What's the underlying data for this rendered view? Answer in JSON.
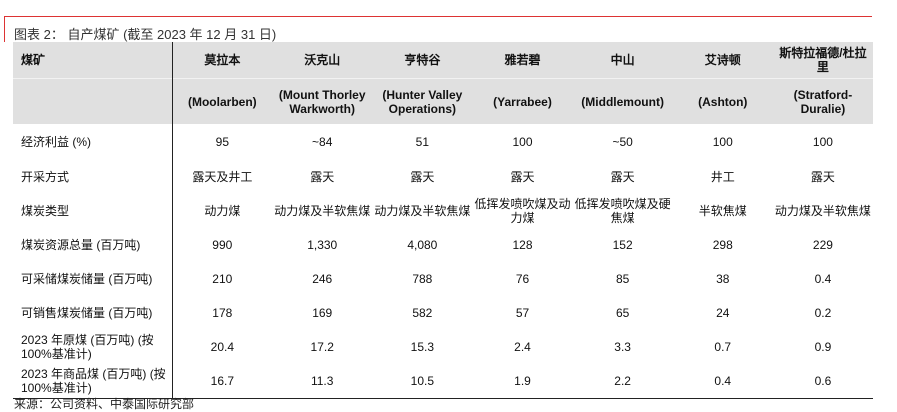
{
  "title": "图表 2： 自产煤矿 (截至 2023 年 12 月 31 日)",
  "header": {
    "label": "煤矿",
    "mines": [
      {
        "cn": "莫拉本",
        "en": "(Moolarben)"
      },
      {
        "cn": "沃克山",
        "en": "(Mount Thorley Warkworth)"
      },
      {
        "cn": "亨特谷",
        "en": "(Hunter Valley Operations)"
      },
      {
        "cn": "雅若碧",
        "en": "(Yarrabee)"
      },
      {
        "cn": "中山",
        "en": "(Middlemount)"
      },
      {
        "cn": "艾诗顿",
        "en": "(Ashton)"
      },
      {
        "cn": "斯特拉福德/杜拉里",
        "en": "(Stratford-Duralie)"
      }
    ]
  },
  "rows": [
    {
      "label": "经济利益 (%)",
      "values": [
        "95",
        "~84",
        "51",
        "100",
        "~50",
        "100",
        "100"
      ]
    },
    {
      "label": "开采方式",
      "values": [
        "露天及井工",
        "露天",
        "露天",
        "露天",
        "露天",
        "井工",
        "露天"
      ]
    },
    {
      "label": "煤炭类型",
      "values": [
        "动力煤",
        "动力煤及半软焦煤",
        "动力煤及半软焦煤",
        "低挥发喷吹煤及动力煤",
        "低挥发喷吹煤及硬焦煤",
        "半软焦煤",
        "动力煤及半软焦煤"
      ]
    },
    {
      "label": "煤炭资源总量 (百万吨)",
      "values": [
        "990",
        "1,330",
        "4,080",
        "128",
        "152",
        "298",
        "229"
      ]
    },
    {
      "label": "可采储煤炭储量 (百万吨)",
      "values": [
        "210",
        "246",
        "788",
        "76",
        "85",
        "38",
        "0.4"
      ]
    },
    {
      "label": "可销售煤炭储量 (百万吨)",
      "values": [
        "178",
        "169",
        "582",
        "57",
        "65",
        "24",
        "0.2"
      ]
    },
    {
      "label": "2023 年原煤 (百万吨) (按 100%基准计)",
      "values": [
        "20.4",
        "17.2",
        "15.3",
        "2.4",
        "3.3",
        "0.7",
        "0.9"
      ]
    },
    {
      "label": "2023 年商品煤 (百万吨) (按 100%基准计)",
      "values": [
        "16.7",
        "11.3",
        "10.5",
        "1.9",
        "2.2",
        "0.4",
        "0.6"
      ]
    }
  ],
  "source": "来源：公司资料、中泰国际研究部",
  "colors": {
    "accent": "#dd3333",
    "header_bg": "#e0e0e0"
  }
}
